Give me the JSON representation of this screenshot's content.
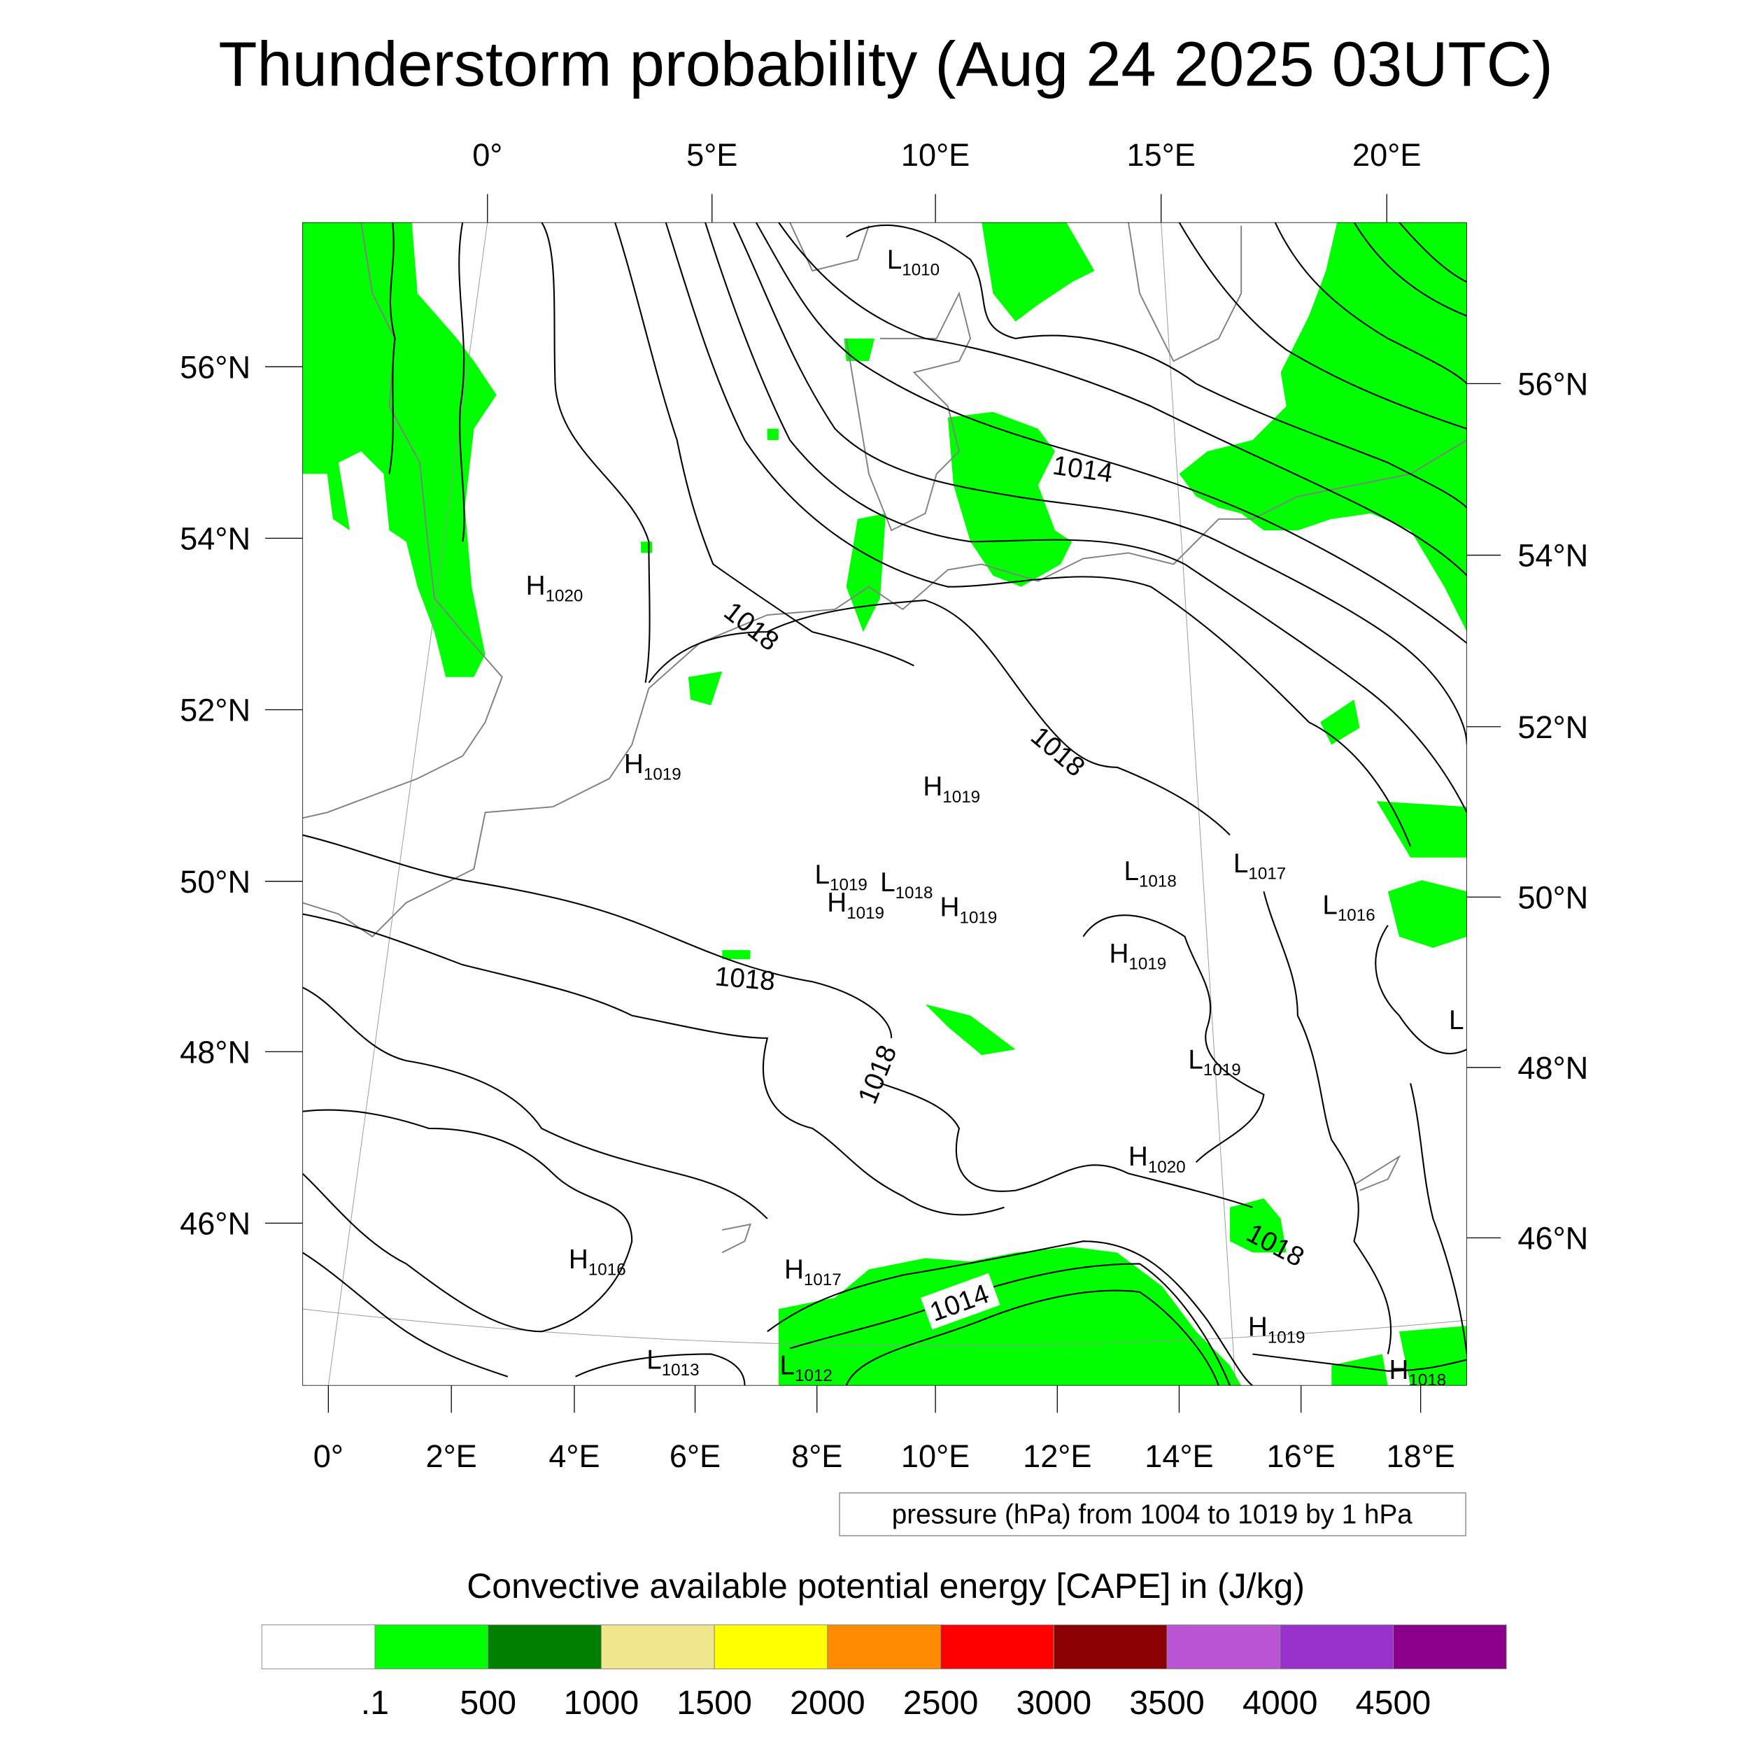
{
  "title": "Thunderstorm probability (Aug 24 2025 03UTC)",
  "axes": {
    "top_lon_labels": [
      "0°",
      "5°E",
      "10°E",
      "15°E",
      "20°E"
    ],
    "left_lat_labels": [
      "56°N",
      "54°N",
      "52°N",
      "50°N",
      "48°N",
      "46°N"
    ],
    "right_lat_labels": [
      "56°N",
      "54°N",
      "52°N",
      "50°N",
      "48°N",
      "46°N"
    ],
    "bottom_lon_labels": [
      "0°",
      "2°E",
      "4°E",
      "6°E",
      "8°E",
      "10°E",
      "12°E",
      "14°E",
      "16°E",
      "18°E"
    ]
  },
  "pressure_info": "pressure (hPa) from 1004 to 1019 by 1 hPa",
  "pressure_centers": [
    {
      "type": "L",
      "value": "1010"
    },
    {
      "type": "H",
      "value": "1020"
    },
    {
      "type": "H",
      "value": "1019"
    },
    {
      "type": "H",
      "value": "1019"
    },
    {
      "type": "L",
      "value": "1019"
    },
    {
      "type": "L",
      "value": "1018"
    },
    {
      "type": "H",
      "value": "1019"
    },
    {
      "type": "H",
      "value": "1019"
    },
    {
      "type": "L",
      "value": "1018"
    },
    {
      "type": "L",
      "value": "1017"
    },
    {
      "type": "L",
      "value": "1016"
    },
    {
      "type": "H",
      "value": "1019"
    },
    {
      "type": "L",
      "value": ""
    },
    {
      "type": "L",
      "value": "1019"
    },
    {
      "type": "H",
      "value": "1020"
    },
    {
      "type": "H",
      "value": "1016"
    },
    {
      "type": "H",
      "value": "1017"
    },
    {
      "type": "L",
      "value": "1013"
    },
    {
      "type": "L",
      "value": "1012"
    },
    {
      "type": "H",
      "value": "1019"
    },
    {
      "type": "H",
      "value": "1018"
    }
  ],
  "contour_labels": [
    "1014",
    "1018",
    "1018",
    "1018",
    "1018",
    "1018",
    "1014"
  ],
  "colorbar": {
    "title": "Convective available potential energy [CAPE] in (J/kg)",
    "colors": [
      "#ffffff",
      "#00ff00",
      "#008000",
      "#f0e68c",
      "#ffff00",
      "#ff8c00",
      "#ff0000",
      "#8b0000",
      "#ba55d3",
      "#9932cc",
      "#8b008b"
    ],
    "labels": [
      ".1",
      "500",
      "1000",
      "1500",
      "2000",
      "2500",
      "3000",
      "3500",
      "4000",
      "4500"
    ]
  },
  "chart_data": {
    "type": "heatmap",
    "title": "Thunderstorm probability (Aug 24 2025 03UTC)",
    "field": "CAPE (J/kg) with mean sea level pressure contours",
    "lon_range": [
      0,
      20
    ],
    "lat_range": [
      44.5,
      57.5
    ],
    "contour_interval_hPa": 1,
    "contour_range_hPa": [
      1004,
      1019
    ],
    "cape_levels": [
      0.1,
      500,
      1000,
      1500,
      2000,
      2500,
      3000,
      3500,
      4000,
      4500
    ],
    "observed_max_cape_class": "0.1-500"
  }
}
